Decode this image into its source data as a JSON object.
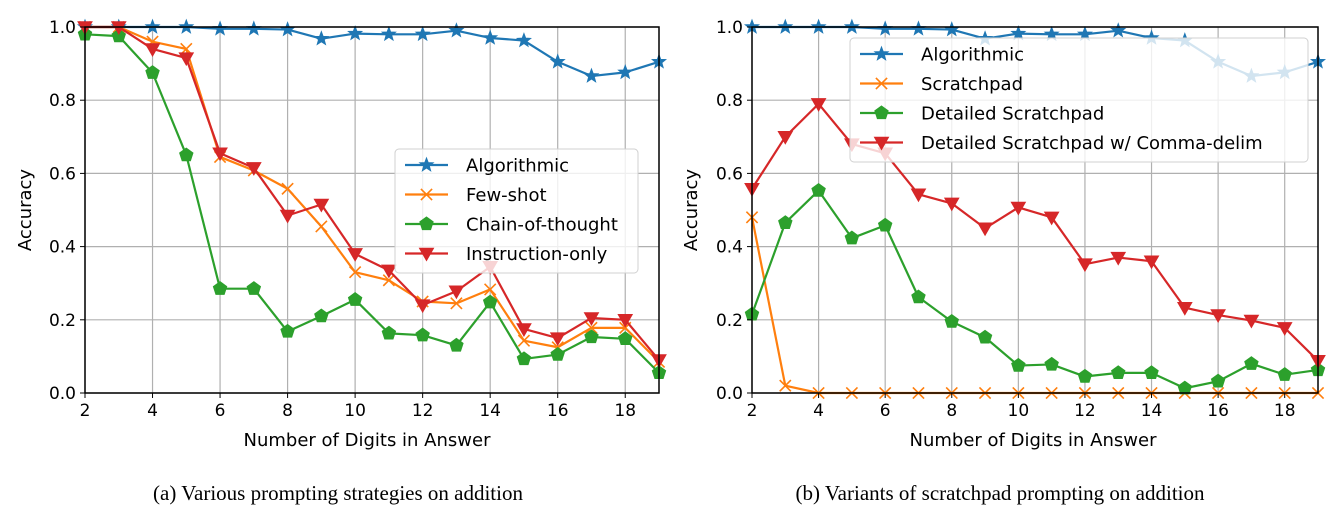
{
  "chart_data": [
    {
      "type": "line",
      "title": "",
      "caption": "(a)  Various prompting strategies on addition",
      "xlabel": "Number of Digits in Answer",
      "ylabel": "Accuracy",
      "xlim": [
        2,
        19
      ],
      "ylim": [
        0,
        1.0
      ],
      "xticks": [
        2,
        4,
        6,
        8,
        10,
        12,
        14,
        16,
        18
      ],
      "yticks": [
        0.0,
        0.2,
        0.4,
        0.6,
        0.8,
        1.0
      ],
      "ytick_labels": [
        "0.0",
        "0.2",
        "0.4",
        "0.6",
        "0.8",
        "1.0"
      ],
      "grid": true,
      "legend_position": "center-right",
      "x": [
        2,
        3,
        4,
        5,
        6,
        7,
        8,
        9,
        10,
        11,
        12,
        13,
        14,
        15,
        16,
        17,
        18,
        19
      ],
      "series": [
        {
          "name": "Algorithmic",
          "color": "#1f77b4",
          "marker": "star",
          "values": [
            1.0,
            1.0,
            1.0,
            1.0,
            0.995,
            0.995,
            0.993,
            0.968,
            0.982,
            0.98,
            0.98,
            0.99,
            0.97,
            0.963,
            0.905,
            0.866,
            0.876,
            0.905
          ]
        },
        {
          "name": "Few-shot",
          "color": "#ff7f0e",
          "marker": "x",
          "values": [
            1.0,
            1.0,
            0.96,
            0.94,
            0.645,
            0.608,
            0.558,
            0.455,
            0.33,
            0.308,
            0.25,
            0.245,
            0.283,
            0.143,
            0.125,
            0.178,
            0.178,
            0.085
          ]
        },
        {
          "name": "Chain-of-thought",
          "color": "#2ca02c",
          "marker": "pentagon",
          "values": [
            0.98,
            0.975,
            0.875,
            0.65,
            0.285,
            0.285,
            0.168,
            0.21,
            0.255,
            0.163,
            0.158,
            0.13,
            0.248,
            0.093,
            0.105,
            0.153,
            0.148,
            0.055
          ]
        },
        {
          "name": "Instruction-only",
          "color": "#d62728",
          "marker": "triangle-down",
          "values": [
            1.0,
            1.0,
            0.94,
            0.915,
            0.655,
            0.615,
            0.485,
            0.515,
            0.38,
            0.335,
            0.24,
            0.278,
            0.345,
            0.175,
            0.15,
            0.205,
            0.2,
            0.09
          ]
        }
      ]
    },
    {
      "type": "line",
      "title": "",
      "caption": "(b)  Variants of scratchpad prompting on addition",
      "xlabel": "Number of Digits in Answer",
      "ylabel": "Accuracy",
      "xlim": [
        2,
        19
      ],
      "ylim": [
        0,
        1.0
      ],
      "xticks": [
        2,
        4,
        6,
        8,
        10,
        12,
        14,
        16,
        18
      ],
      "yticks": [
        0.0,
        0.2,
        0.4,
        0.6,
        0.8,
        1.0
      ],
      "ytick_labels": [
        "0.0",
        "0.2",
        "0.4",
        "0.6",
        "0.8",
        "1.0"
      ],
      "grid": true,
      "legend_position": "upper-right",
      "x": [
        2,
        3,
        4,
        5,
        6,
        7,
        8,
        9,
        10,
        11,
        12,
        13,
        14,
        15,
        16,
        17,
        18,
        19
      ],
      "series": [
        {
          "name": "Algorithmic",
          "color": "#1f77b4",
          "marker": "star",
          "values": [
            1.0,
            1.0,
            1.0,
            1.0,
            0.995,
            0.995,
            0.993,
            0.968,
            0.982,
            0.98,
            0.98,
            0.99,
            0.97,
            0.963,
            0.905,
            0.866,
            0.876,
            0.905
          ]
        },
        {
          "name": "Scratchpad",
          "color": "#ff7f0e",
          "marker": "x",
          "values": [
            0.48,
            0.02,
            0.0,
            0.0,
            0.0,
            0.0,
            0.0,
            0.0,
            0.0,
            0.0,
            0.0,
            0.0,
            0.0,
            0.0,
            0.0,
            0.0,
            0.0,
            0.0
          ]
        },
        {
          "name": "Detailed Scratchpad",
          "color": "#2ca02c",
          "marker": "pentagon",
          "values": [
            0.215,
            0.465,
            0.553,
            0.423,
            0.458,
            0.262,
            0.195,
            0.152,
            0.075,
            0.078,
            0.045,
            0.055,
            0.055,
            0.013,
            0.032,
            0.08,
            0.05,
            0.063
          ]
        },
        {
          "name": "Detailed Scratchpad w/ Comma-delim",
          "color": "#d62728",
          "marker": "triangle-down",
          "values": [
            0.558,
            0.7,
            0.79,
            0.68,
            0.655,
            0.543,
            0.518,
            0.45,
            0.507,
            0.48,
            0.352,
            0.37,
            0.36,
            0.233,
            0.213,
            0.198,
            0.178,
            0.088
          ]
        }
      ]
    }
  ]
}
